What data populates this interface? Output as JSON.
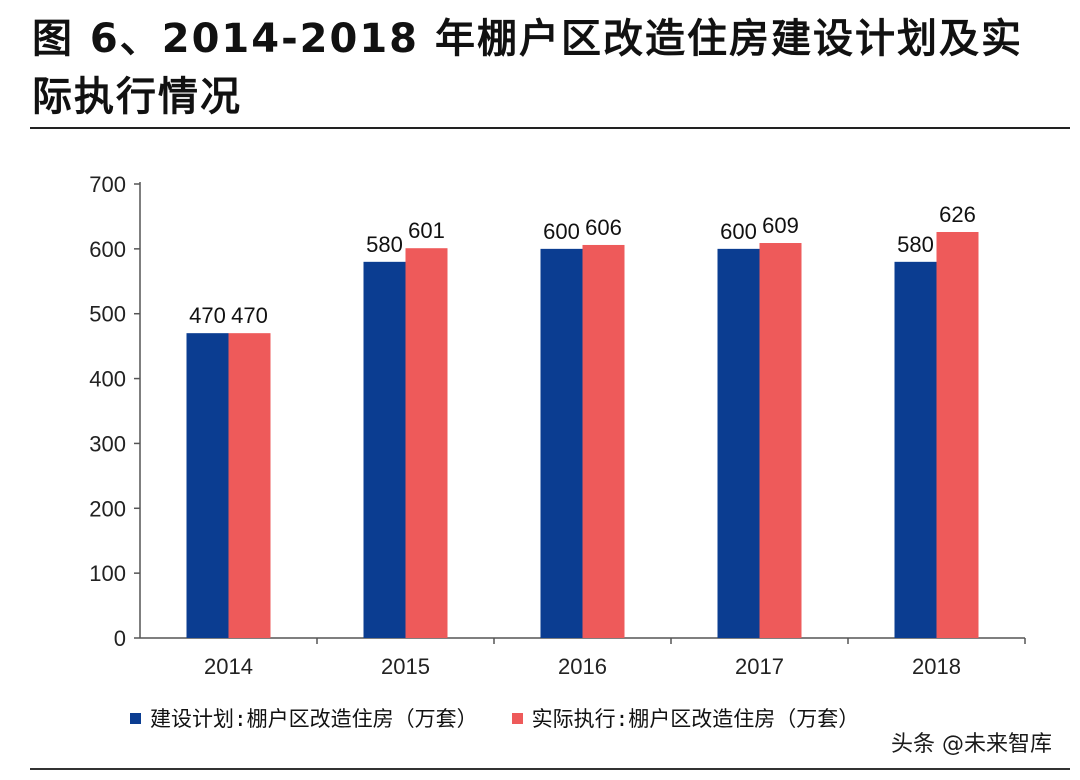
{
  "title": "图 6、2014-2018 年棚户区改造住房建设计划及实际执行情况",
  "chart_data": {
    "type": "bar",
    "categories": [
      "2014",
      "2015",
      "2016",
      "2017",
      "2018"
    ],
    "series": [
      {
        "name": "建设计划:棚户区改造住房（万套）",
        "color": "#0B3D91",
        "values": [
          470,
          580,
          600,
          600,
          580
        ],
        "labels": [
          "470",
          "580",
          "600",
          "600",
          "580"
        ]
      },
      {
        "name": "实际执行:棚户区改造住房（万套）",
        "color": "#EE5A5A",
        "values": [
          470,
          601,
          606,
          609,
          626
        ],
        "labels": [
          "470",
          "601",
          "606",
          "609",
          "626"
        ]
      }
    ],
    "ylim": [
      0,
      700
    ],
    "yticks": [
      "0",
      "100",
      "200",
      "300",
      "400",
      "500",
      "600",
      "700"
    ],
    "grid": false,
    "legend_position": "bottom"
  },
  "watermark": "头条 @未来智库"
}
